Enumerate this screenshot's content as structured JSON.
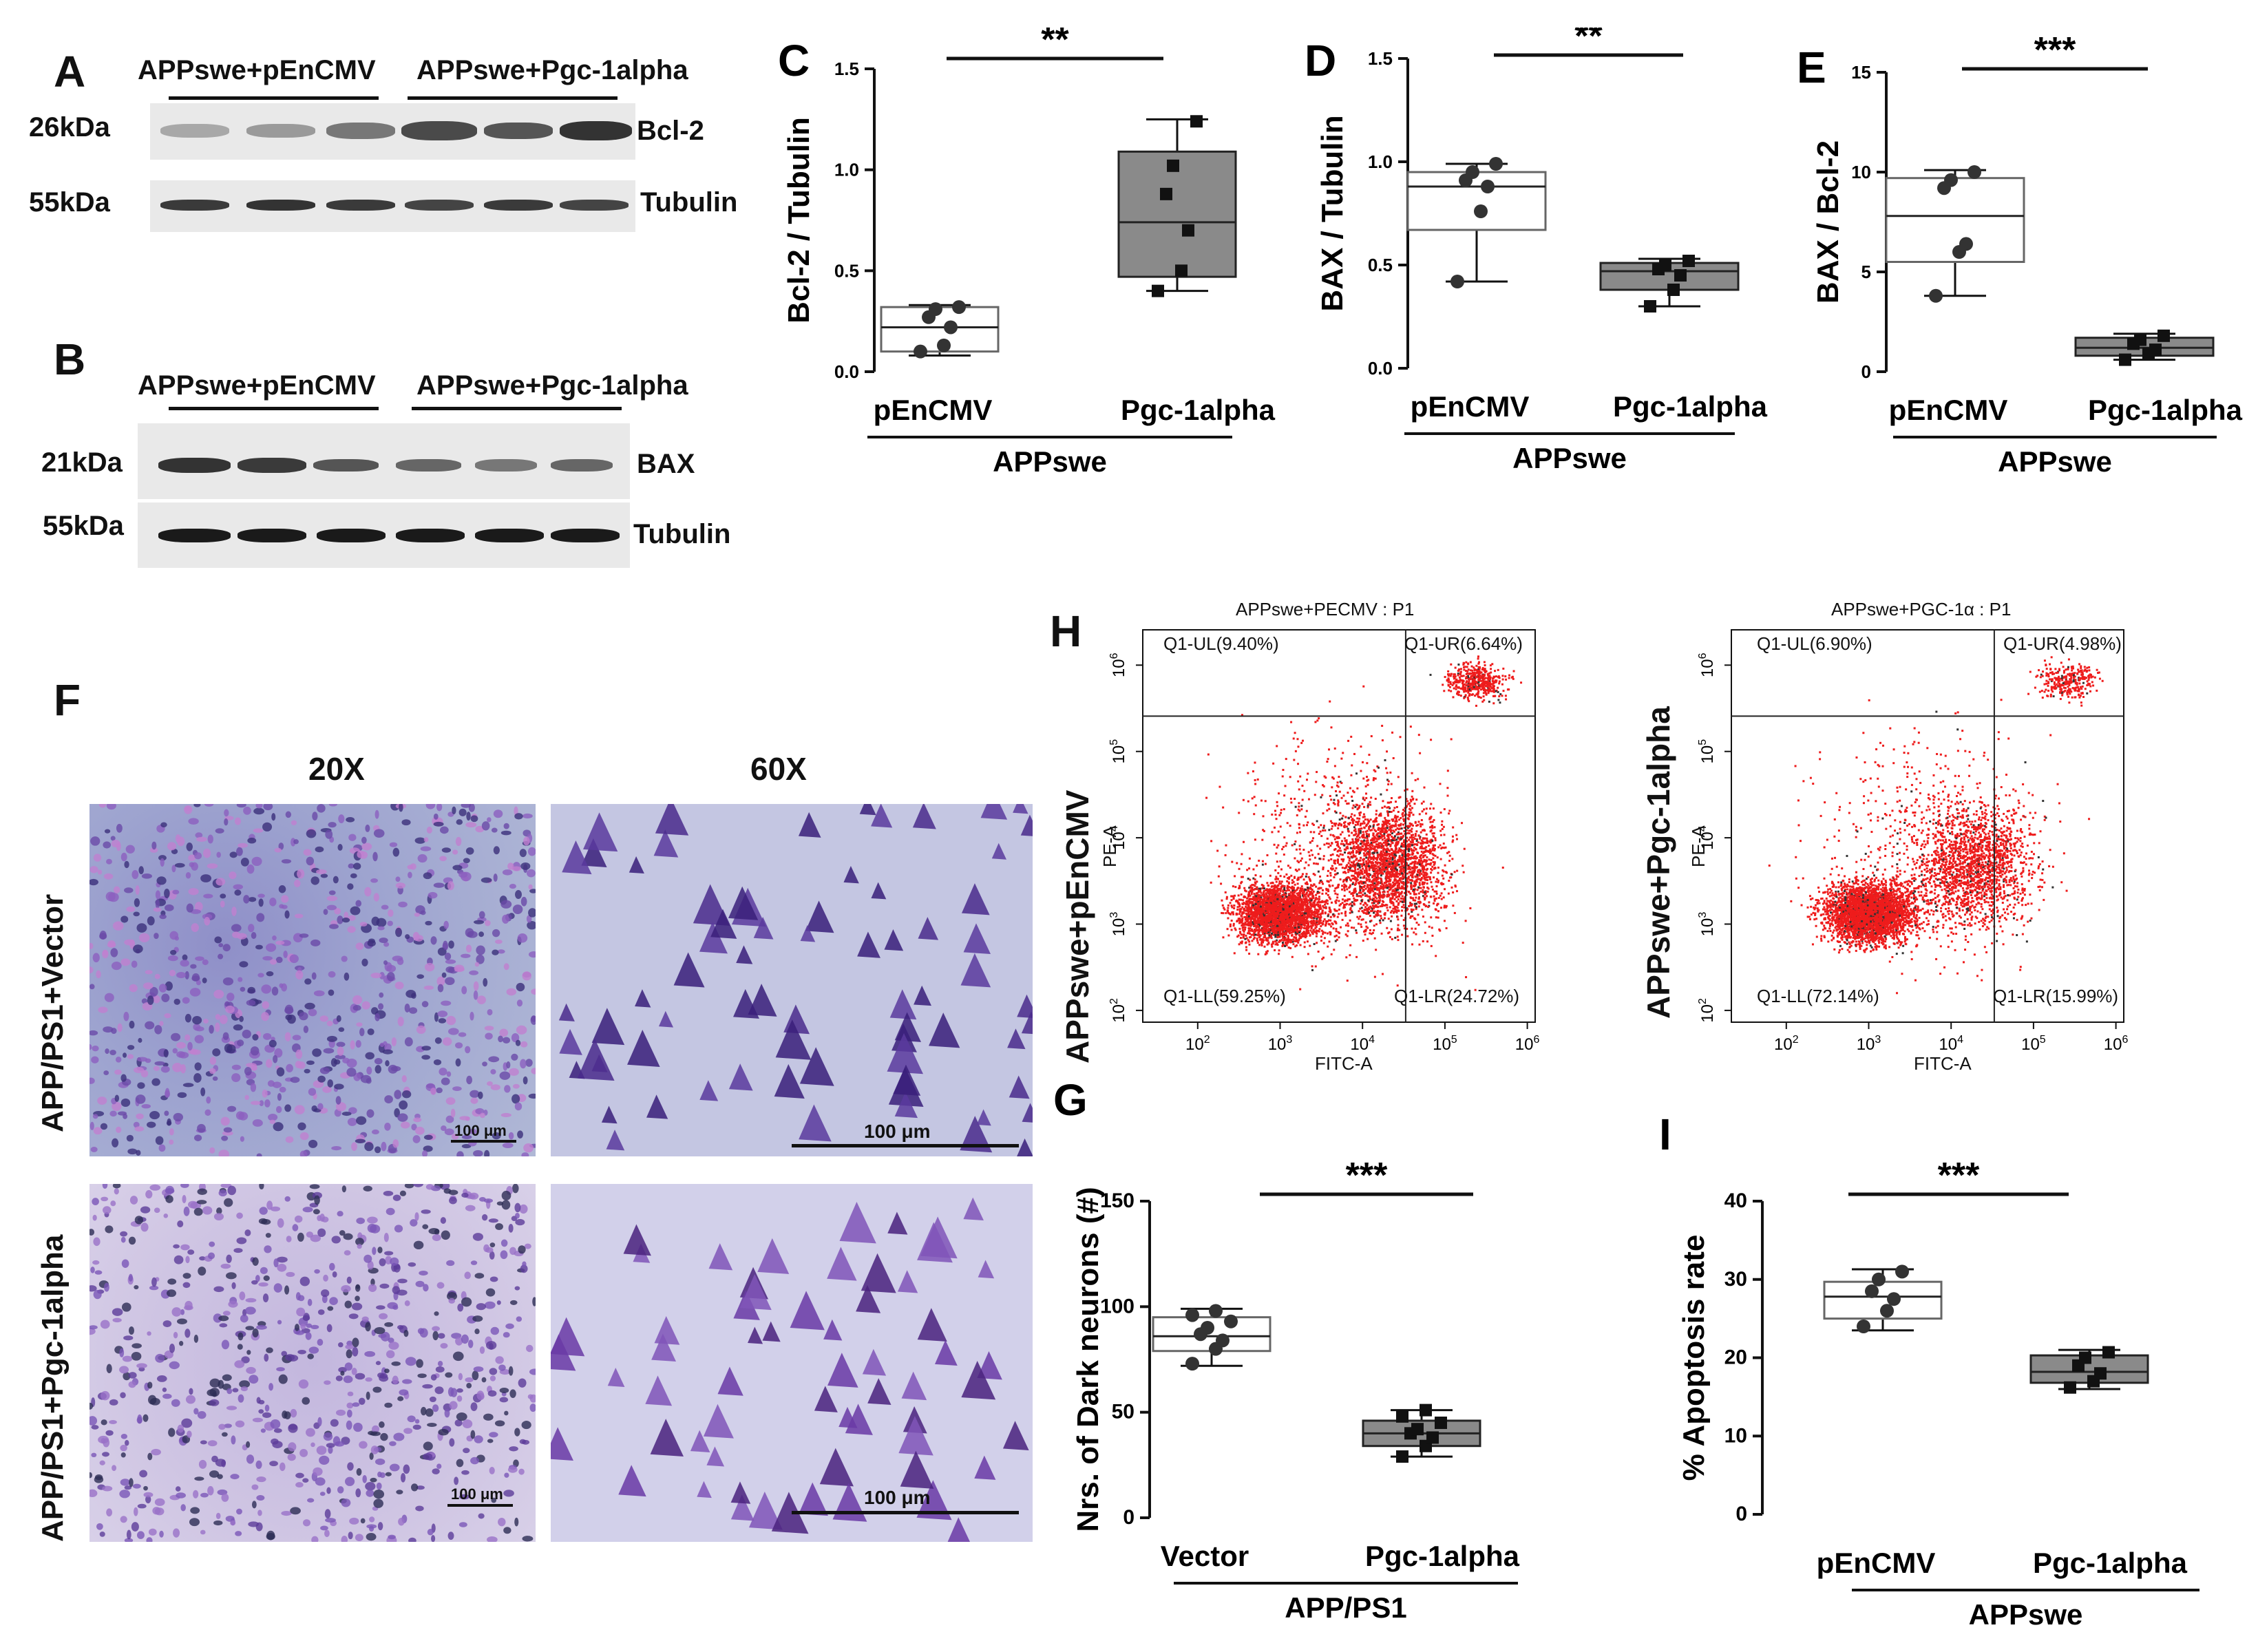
{
  "panels": {
    "A": {
      "label": "A",
      "group1": "APPswe+pEnCMV",
      "group2": "APPswe+Pgc-1alpha",
      "rows": [
        {
          "kda": "26kDa",
          "protein": "Bcl-2"
        },
        {
          "kda": "55kDa",
          "protein": "Tubulin"
        }
      ]
    },
    "B": {
      "label": "B",
      "group1": "APPswe+pEnCMV",
      "group2": "APPswe+Pgc-1alpha",
      "rows": [
        {
          "kda": "21kDa",
          "protein": "BAX"
        },
        {
          "kda": "55kDa",
          "protein": "Tubulin"
        }
      ]
    },
    "F": {
      "label": "F",
      "col1": "20X",
      "col2": "60X",
      "row1": "APP/PS1+Vector",
      "row2": "APP/PS1+Pgc-1alpha",
      "scale_small": "100 μm",
      "scale_large": "100 μm"
    },
    "H": {
      "label": "H",
      "plot1": {
        "title": "APPswe+PECMV : P1",
        "ylabel": "APPswe+pEnCMV",
        "q_ul": "Q1-UL(9.40%)",
        "q_ur": "Q1-UR(6.64%)",
        "q_ll": "Q1-LL(59.25%)",
        "q_lr": "Q1-LR(24.72%)"
      },
      "plot2": {
        "title": "APPswe+PGC-1α : P1",
        "ylabel": "APPswe+Pgc-1alpha",
        "q_ul": "Q1-UL(6.90%)",
        "q_ur": "Q1-UR(4.98%)",
        "q_ll": "Q1-LL(72.14%)",
        "q_lr": "Q1-LR(15.99%)"
      },
      "x_axis": "FITC-A",
      "y_axis": "PE-A"
    }
  },
  "chart_data": [
    {
      "id": "C",
      "type": "box",
      "ylabel": "Bcl-2 / Tubulin",
      "categories": [
        "pEnCMV",
        "Pgc-1alpha"
      ],
      "group": "APPswe",
      "sig": "**",
      "ylim": [
        0,
        1.5
      ],
      "yticks": [
        "0.0",
        "0.5",
        "1.0",
        "1.5"
      ],
      "tickvals": [
        0,
        0.5,
        1.0,
        1.5
      ],
      "boxes": [
        {
          "min": 0.08,
          "q1": 0.1,
          "median": 0.22,
          "q3": 0.32,
          "max": 0.33,
          "points": [
            0.1,
            0.13,
            0.22,
            0.27,
            0.31,
            0.32
          ]
        },
        {
          "min": 0.4,
          "q1": 0.47,
          "median": 0.74,
          "q3": 1.09,
          "max": 1.25,
          "points": [
            0.4,
            0.5,
            0.7,
            0.88,
            1.02,
            1.24
          ]
        }
      ]
    },
    {
      "id": "D",
      "type": "box",
      "ylabel": "BAX / Tubulin",
      "categories": [
        "pEnCMV",
        "Pgc-1alpha"
      ],
      "group": "APPswe",
      "sig": "**",
      "ylim": [
        0,
        1.5
      ],
      "yticks": [
        "0.0",
        "0.5",
        "1.0",
        "1.5"
      ],
      "tickvals": [
        0,
        0.5,
        1.0,
        1.5
      ],
      "boxes": [
        {
          "min": 0.42,
          "q1": 0.67,
          "median": 0.88,
          "q3": 0.95,
          "max": 0.99,
          "points": [
            0.42,
            0.76,
            0.88,
            0.91,
            0.95,
            0.99
          ]
        },
        {
          "min": 0.3,
          "q1": 0.38,
          "median": 0.47,
          "q3": 0.51,
          "max": 0.53,
          "points": [
            0.3,
            0.38,
            0.45,
            0.48,
            0.5,
            0.52
          ]
        }
      ]
    },
    {
      "id": "E",
      "type": "box",
      "ylabel": "BAX / Bcl-2",
      "categories": [
        "pEnCMV",
        "Pgc-1alpha"
      ],
      "group": "APPswe",
      "sig": "***",
      "ylim": [
        0,
        15
      ],
      "yticks": [
        "0",
        "5",
        "10",
        "15"
      ],
      "tickvals": [
        0,
        5,
        10,
        15
      ],
      "boxes": [
        {
          "min": 3.8,
          "q1": 5.5,
          "median": 7.8,
          "q3": 9.7,
          "max": 10.1,
          "points": [
            3.8,
            6.0,
            6.4,
            9.2,
            9.6,
            10.0
          ]
        },
        {
          "min": 0.6,
          "q1": 0.8,
          "median": 1.2,
          "q3": 1.7,
          "max": 1.9,
          "points": [
            0.6,
            0.9,
            1.1,
            1.4,
            1.6,
            1.8
          ]
        }
      ]
    },
    {
      "id": "G",
      "type": "box",
      "ylabel": "Nrs. of Dark neurons (#)",
      "categories": [
        "Vector",
        "Pgc-1alpha"
      ],
      "group": "APP/PS1",
      "sig": "***",
      "ylim": [
        0,
        150
      ],
      "yticks": [
        "0",
        "50",
        "100",
        "150"
      ],
      "tickvals": [
        0,
        50,
        100,
        150
      ],
      "boxes": [
        {
          "min": 72,
          "q1": 79,
          "median": 86,
          "q3": 95,
          "max": 99,
          "points": [
            73,
            80,
            84,
            87,
            90,
            93,
            96,
            98
          ]
        },
        {
          "min": 29,
          "q1": 34,
          "median": 40,
          "q3": 46,
          "max": 51,
          "points": [
            29,
            34,
            38,
            40,
            42,
            45,
            48,
            51
          ]
        }
      ]
    },
    {
      "id": "I",
      "type": "box",
      "ylabel": "% Apoptosis rate",
      "categories": [
        "pEnCMV",
        "Pgc-1alpha"
      ],
      "group": "APPswe",
      "sig": "***",
      "ylim": [
        0,
        40
      ],
      "yticks": [
        "0",
        "10",
        "20",
        "30",
        "40"
      ],
      "tickvals": [
        0,
        10,
        20,
        30,
        40
      ],
      "boxes": [
        {
          "min": 23.5,
          "q1": 25,
          "median": 27.8,
          "q3": 29.7,
          "max": 31.3,
          "points": [
            24,
            26,
            27.5,
            28.5,
            30,
            31
          ]
        },
        {
          "min": 16,
          "q1": 16.8,
          "median": 18.2,
          "q3": 20.3,
          "max": 21,
          "points": [
            16.2,
            17,
            18,
            19,
            20,
            20.7
          ]
        }
      ]
    }
  ]
}
